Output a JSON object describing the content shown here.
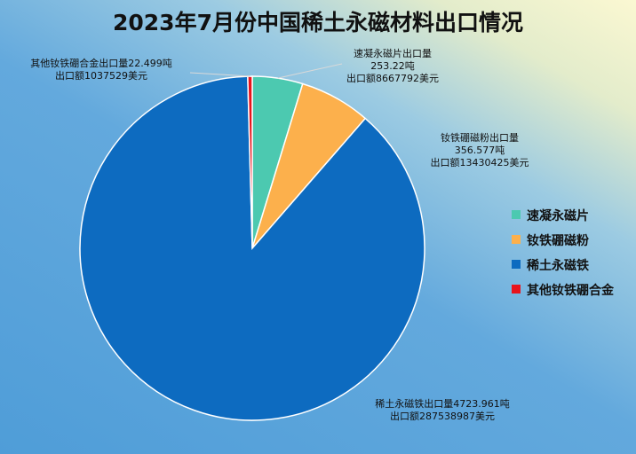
{
  "chart_data": {
    "type": "pie",
    "title": "2023年7月份中国稀土永磁材料出口情况",
    "unit": "吨",
    "slices": [
      {
        "name": "速凝永磁片",
        "value": 253.22,
        "color": "#4cc9b0",
        "label_lines": [
          "速凝永磁片出口量",
          "253.22吨",
          "出口额8667792美元"
        ]
      },
      {
        "name": "钕铁硼磁粉",
        "value": 356.577,
        "color": "#fcb04c",
        "label_lines": [
          "钕铁硼磁粉出口量",
          "356.577吨",
          "出口额13430425美元"
        ]
      },
      {
        "name": "稀土永磁铁",
        "value": 4723.961,
        "color": "#0d6bc0",
        "label_lines": [
          "稀土永磁铁出口量4723.961吨",
          "出口额287538987美元"
        ]
      },
      {
        "name": "其他钕铁硼合金",
        "value": 22.499,
        "color": "#e8141c",
        "label_lines": [
          "其他钕铁硼合金出口量22.499吨",
          "出口额1037529美元"
        ]
      }
    ],
    "legend": {
      "position": "right",
      "entries": [
        "速凝永磁片",
        "钕铁硼磁粉",
        "稀土永磁铁",
        "其他钕铁硼合金"
      ]
    }
  }
}
